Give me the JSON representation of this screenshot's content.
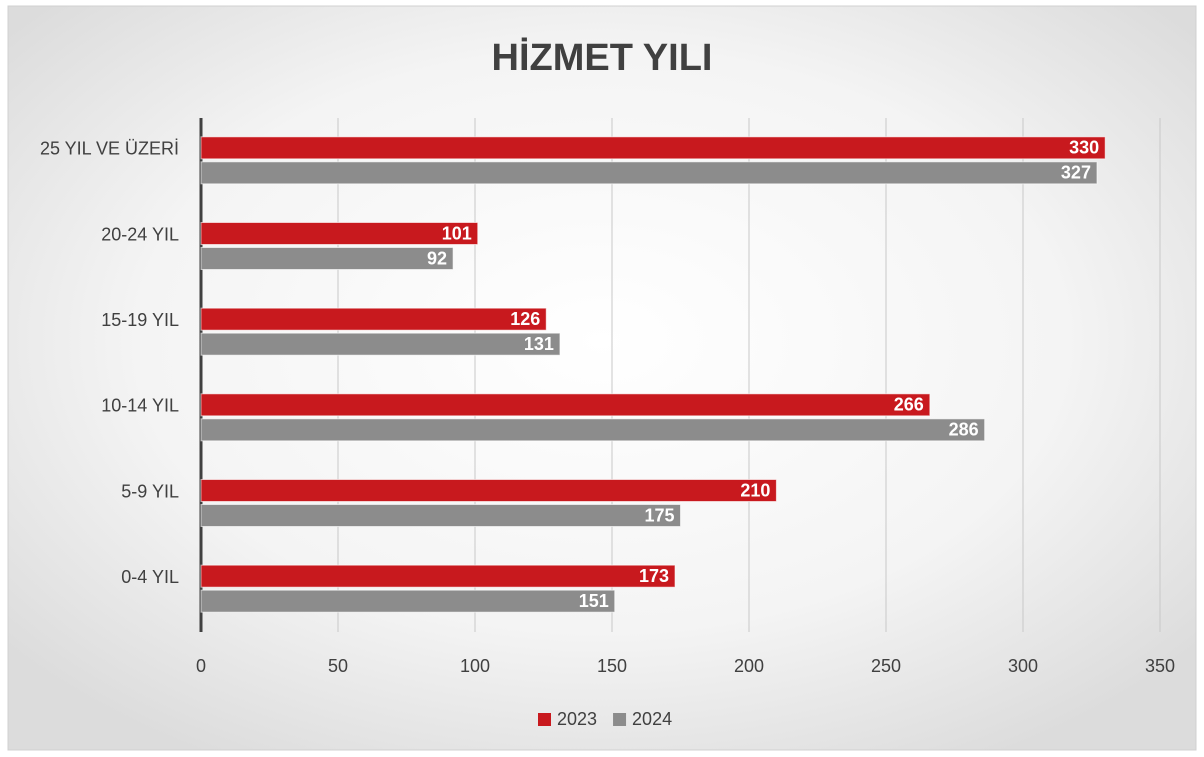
{
  "chart_data": {
    "type": "bar",
    "orientation": "horizontal",
    "title": "HİZMET YILI",
    "categories": [
      "25 YIL VE ÜZERİ",
      "20-24 YIL",
      "15-19 YIL",
      "10-14 YIL",
      "5-9 YIL",
      "0-4 YIL"
    ],
    "series": [
      {
        "name": "2023",
        "color": "#c8191e",
        "values": [
          330,
          101,
          126,
          266,
          210,
          173
        ]
      },
      {
        "name": "2024",
        "color": "#8c8c8c",
        "values": [
          327,
          92,
          131,
          286,
          175,
          151
        ]
      }
    ],
    "xlim": [
      0,
      350
    ],
    "xticks": [
      0,
      50,
      100,
      150,
      200,
      250,
      300,
      350
    ],
    "grid": true,
    "legend": "bottom"
  }
}
